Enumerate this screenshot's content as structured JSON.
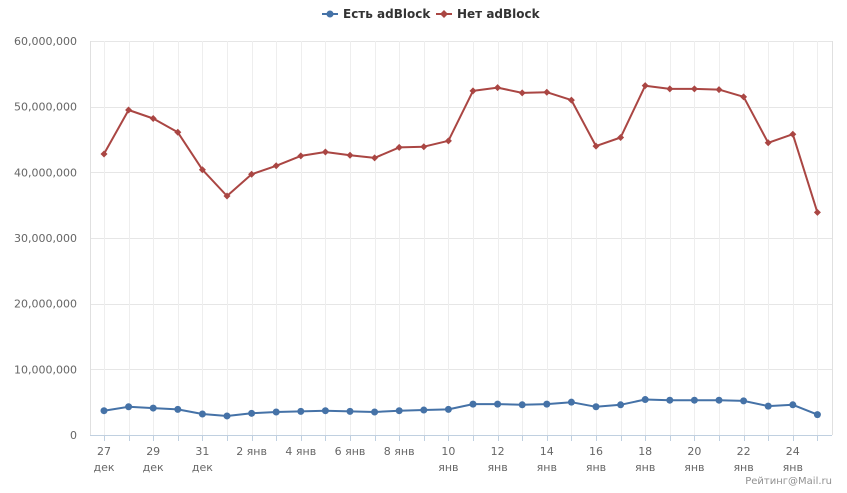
{
  "chart_data": {
    "type": "line",
    "title": "",
    "xlabel": "",
    "ylabel": "",
    "ylim": [
      0,
      60000000
    ],
    "yticks": [
      "0",
      "10,000,000",
      "20,000,000",
      "30,000,000",
      "40,000,000",
      "50,000,000",
      "60,000,000"
    ],
    "ytick_values": [
      0,
      10000000,
      20000000,
      30000000,
      40000000,
      50000000,
      60000000
    ],
    "x": [
      "27 дек",
      "28 дек",
      "29 дек",
      "30 дек",
      "31 дек",
      "1 янв",
      "2 янв",
      "3 янв",
      "4 янв",
      "5 янв",
      "6 янв",
      "7 янв",
      "8 янв",
      "9 янв",
      "10 янв",
      "11 янв",
      "12 янв",
      "13 янв",
      "14 янв",
      "15 янв",
      "16 янв",
      "17 янв",
      "18 янв",
      "19 янв",
      "20 янв",
      "21 янв",
      "22 янв",
      "23 янв",
      "24 янв",
      "25 янв"
    ],
    "xtick_labels": [
      {
        "index": 0,
        "line1": "27",
        "line2": "дек"
      },
      {
        "index": 2,
        "line1": "29",
        "line2": "дек"
      },
      {
        "index": 4,
        "line1": "31",
        "line2": "дек"
      },
      {
        "index": 6,
        "line1": "2 янв",
        "line2": ""
      },
      {
        "index": 8,
        "line1": "4 янв",
        "line2": ""
      },
      {
        "index": 10,
        "line1": "6 янв",
        "line2": ""
      },
      {
        "index": 12,
        "line1": "8 янв",
        "line2": ""
      },
      {
        "index": 14,
        "line1": "10",
        "line2": "янв"
      },
      {
        "index": 16,
        "line1": "12",
        "line2": "янв"
      },
      {
        "index": 18,
        "line1": "14",
        "line2": "янв"
      },
      {
        "index": 20,
        "line1": "16",
        "line2": "янв"
      },
      {
        "index": 22,
        "line1": "18",
        "line2": "янв"
      },
      {
        "index": 24,
        "line1": "20",
        "line2": "янв"
      },
      {
        "index": 26,
        "line1": "22",
        "line2": "янв"
      },
      {
        "index": 28,
        "line1": "24",
        "line2": "янв"
      }
    ],
    "series": [
      {
        "name": "Есть adBlock",
        "color": "#4572a7",
        "values": [
          3700000,
          4300000,
          4100000,
          3900000,
          3200000,
          2900000,
          3300000,
          3500000,
          3600000,
          3700000,
          3600000,
          3500000,
          3700000,
          3800000,
          3900000,
          4700000,
          4700000,
          4600000,
          4700000,
          5000000,
          4300000,
          4600000,
          5400000,
          5300000,
          5300000,
          5300000,
          5200000,
          4400000,
          4600000,
          3100000
        ]
      },
      {
        "name": "Нет adBlock",
        "color": "#aa4643",
        "values": [
          42800000,
          49500000,
          48200000,
          46100000,
          40400000,
          36400000,
          39700000,
          41000000,
          42500000,
          43100000,
          42600000,
          42200000,
          43800000,
          43900000,
          44800000,
          52400000,
          52900000,
          52100000,
          52200000,
          51000000,
          44000000,
          45300000,
          53200000,
          52700000,
          52700000,
          52600000,
          51500000,
          44500000,
          45800000,
          33900000
        ]
      }
    ],
    "grid": true,
    "legend_position": "top-center"
  },
  "credit": "Рейтинг@Mail.ru"
}
